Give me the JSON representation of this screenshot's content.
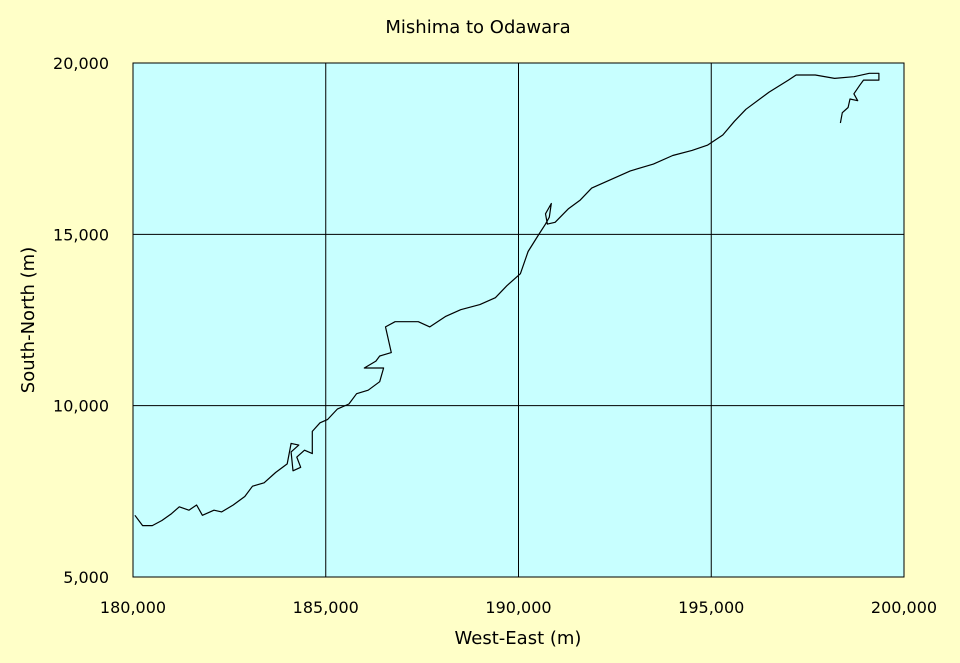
{
  "chart_data": {
    "type": "line",
    "title": "Mishima to Odawara",
    "xlabel": "West-East (m)",
    "ylabel": "South-North (m)",
    "xlim": [
      180000,
      200000
    ],
    "ylim": [
      5000,
      20000
    ],
    "x_ticks": [
      "180,000",
      "185,000",
      "190,000",
      "195,000",
      "200,000"
    ],
    "y_ticks": [
      "5,000",
      "10,000",
      "15,000",
      "20,000"
    ],
    "grid": true,
    "colors": {
      "page_background": "#FFFFC8",
      "plot_background": "#C8FFFF",
      "line": "#000000",
      "grid": "#000000"
    },
    "series": [
      {
        "points": [
          [
            180050,
            6800
          ],
          [
            180250,
            6500
          ],
          [
            180500,
            6500
          ],
          [
            180750,
            6650
          ],
          [
            181000,
            6850
          ],
          [
            181200,
            7050
          ],
          [
            181450,
            6950
          ],
          [
            181650,
            7100
          ],
          [
            181800,
            6800
          ],
          [
            182100,
            6950
          ],
          [
            182300,
            6900
          ],
          [
            182600,
            7100
          ],
          [
            182900,
            7350
          ],
          [
            183100,
            7650
          ],
          [
            183400,
            7750
          ],
          [
            183700,
            8050
          ],
          [
            184000,
            8300
          ],
          [
            184100,
            8900
          ],
          [
            184300,
            8850
          ],
          [
            184100,
            8650
          ],
          [
            184150,
            8100
          ],
          [
            184350,
            8200
          ],
          [
            184250,
            8500
          ],
          [
            184450,
            8700
          ],
          [
            184650,
            8600
          ],
          [
            184650,
            9250
          ],
          [
            184850,
            9500
          ],
          [
            185050,
            9600
          ],
          [
            185300,
            9900
          ],
          [
            185600,
            10050
          ],
          [
            185800,
            10350
          ],
          [
            186100,
            10450
          ],
          [
            186400,
            10700
          ],
          [
            186500,
            11100
          ],
          [
            186000,
            11100
          ],
          [
            186300,
            11300
          ],
          [
            186400,
            11450
          ],
          [
            186700,
            11550
          ],
          [
            186550,
            12300
          ],
          [
            186800,
            12450
          ],
          [
            187400,
            12450
          ],
          [
            187700,
            12300
          ],
          [
            188100,
            12600
          ],
          [
            188500,
            12800
          ],
          [
            189000,
            12950
          ],
          [
            189400,
            13150
          ],
          [
            189700,
            13500
          ],
          [
            190050,
            13850
          ],
          [
            190250,
            14500
          ],
          [
            190500,
            14950
          ],
          [
            190700,
            15300
          ],
          [
            190800,
            15500
          ],
          [
            190850,
            15900
          ],
          [
            190700,
            15600
          ],
          [
            190750,
            15300
          ],
          [
            190950,
            15350
          ],
          [
            191300,
            15750
          ],
          [
            191600,
            16000
          ],
          [
            191900,
            16350
          ],
          [
            192300,
            16550
          ],
          [
            192900,
            16850
          ],
          [
            193500,
            17050
          ],
          [
            194000,
            17300
          ],
          [
            194500,
            17450
          ],
          [
            194900,
            17600
          ],
          [
            195300,
            17900
          ],
          [
            195600,
            18300
          ],
          [
            195900,
            18650
          ],
          [
            196500,
            19150
          ],
          [
            197000,
            19500
          ],
          [
            197200,
            19650
          ],
          [
            197700,
            19650
          ],
          [
            198200,
            19550
          ],
          [
            198700,
            19600
          ],
          [
            199100,
            19700
          ],
          [
            199350,
            19700
          ],
          [
            199350,
            19500
          ],
          [
            198950,
            19500
          ],
          [
            198850,
            19350
          ],
          [
            198700,
            19100
          ],
          [
            198800,
            18900
          ],
          [
            198600,
            18950
          ],
          [
            198550,
            18700
          ],
          [
            198400,
            18550
          ],
          [
            198350,
            18250
          ]
        ]
      }
    ]
  }
}
